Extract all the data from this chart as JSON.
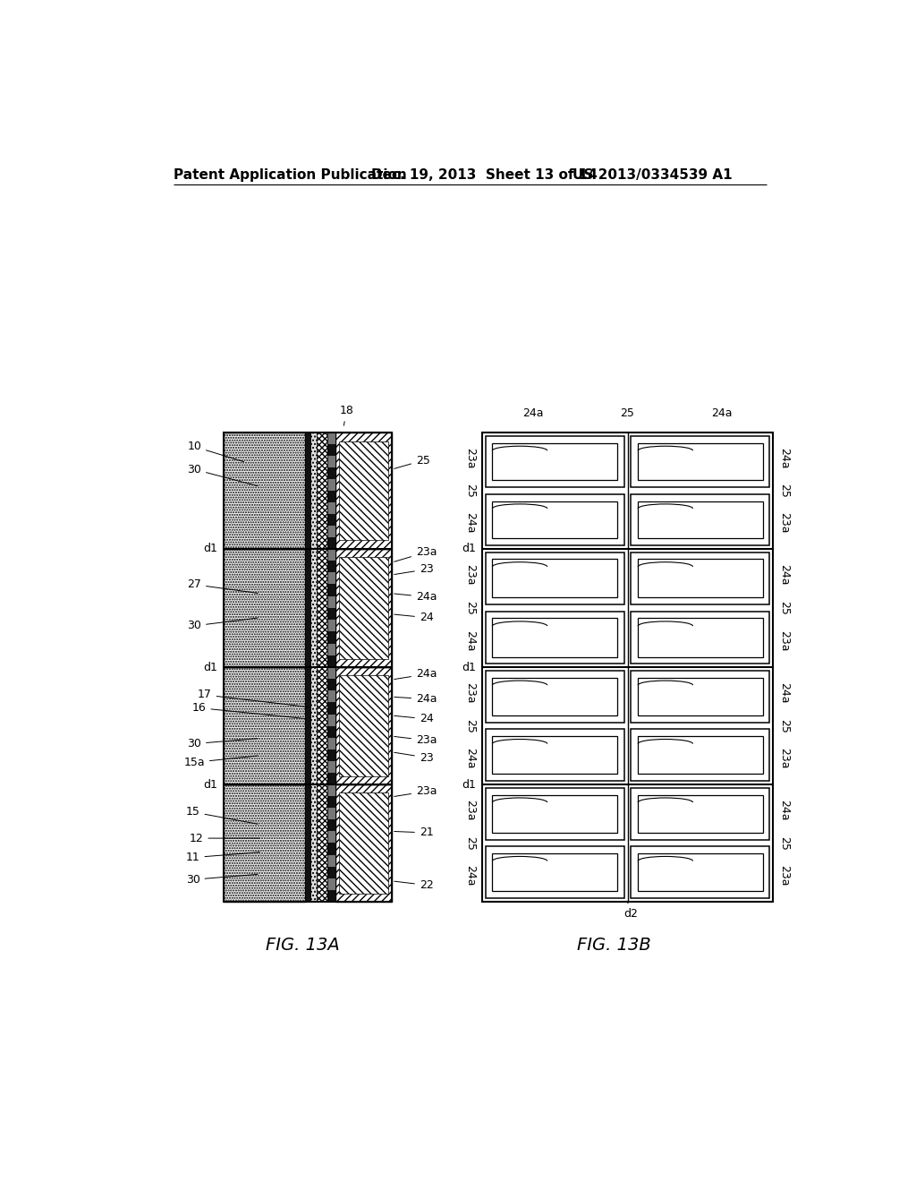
{
  "bg_color": "#ffffff",
  "header_text": "Patent Application Publication",
  "header_date": "Dec. 19, 2013  Sheet 13 of 14",
  "header_patent": "US 2013/0334539 A1",
  "fig13a_label": "FIG. 13A",
  "fig13b_label": "FIG. 13B",
  "fig_label_fontsize": 14,
  "header_fontsize": 11,
  "annotation_fontsize": 9
}
